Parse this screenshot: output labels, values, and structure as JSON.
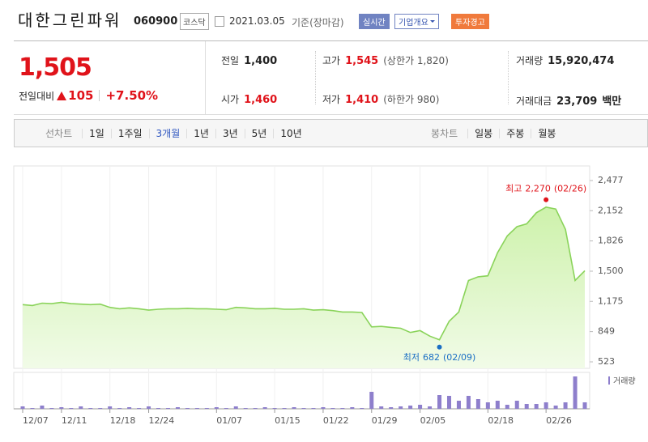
{
  "header": {
    "title": "대한그린파워",
    "code": "060900",
    "market": "코스닥",
    "date": "2021.03.05",
    "basis": "기준(장마감)",
    "buttons": [
      "실시간",
      "기업개요",
      "투자경고"
    ]
  },
  "quote": {
    "price": "1,505",
    "change_label": "전일대비",
    "change": "105",
    "change_pct": "+7.50%"
  },
  "stats": [
    {
      "label": "전일",
      "value": "1,400"
    },
    {
      "label": "고가",
      "value": "1,545",
      "note": "(상한가 1,820)"
    },
    {
      "label": "거래량",
      "value": "15,920,474"
    },
    {
      "label": "시가",
      "value": "1,460"
    },
    {
      "label": "저가",
      "value": "1,410",
      "note": "(하한가 980)"
    },
    {
      "label": "거래대금",
      "value": "23,709",
      "unit": "백만"
    }
  ],
  "tabs": {
    "line_chart": {
      "label": "선차트",
      "options": [
        "1일",
        "1주일",
        "3개월",
        "1년",
        "3년",
        "5년",
        "10년"
      ],
      "selected": 2
    },
    "candle_chart": {
      "label": "봉차트",
      "options": [
        "일봉",
        "주봉",
        "월봉"
      ]
    }
  },
  "chart_data": {
    "type": "area",
    "categories": [
      "12/07",
      null,
      null,
      null,
      "12/11",
      null,
      null,
      null,
      null,
      "12/18",
      null,
      null,
      null,
      "12/24",
      null,
      null,
      null,
      null,
      null,
      null,
      "01/07",
      null,
      null,
      null,
      null,
      null,
      "01/15",
      null,
      null,
      null,
      null,
      "01/22",
      null,
      null,
      null,
      null,
      "01/29",
      null,
      null,
      null,
      null,
      "02/05",
      null,
      null,
      null,
      null,
      null,
      null,
      "02/18",
      null,
      null,
      null,
      null,
      null,
      "02/26",
      null,
      null,
      null,
      null
    ],
    "values": [
      1140,
      1130,
      1155,
      1150,
      1165,
      1150,
      1145,
      1140,
      1145,
      1110,
      1095,
      1105,
      1095,
      1080,
      1090,
      1095,
      1095,
      1100,
      1095,
      1095,
      1090,
      1085,
      1110,
      1105,
      1095,
      1095,
      1100,
      1090,
      1090,
      1095,
      1080,
      1085,
      1075,
      1060,
      1060,
      1055,
      900,
      905,
      895,
      885,
      840,
      860,
      800,
      760,
      960,
      1060,
      1400,
      1440,
      1450,
      1700,
      1880,
      1980,
      2010,
      2130,
      2190,
      2170,
      1950,
      1400,
      1505
    ],
    "color": "#8ad35a",
    "fill": "#c8f0a2",
    "ylim": [
      523,
      2477
    ],
    "yticks": [
      {
        "value": 2477,
        "label": "2,477"
      },
      {
        "value": 2152,
        "label": "2,152"
      },
      {
        "value": 1826,
        "label": "1,826"
      },
      {
        "value": 1500,
        "label": "1,500"
      },
      {
        "value": 1175,
        "label": "1,175"
      },
      849,
      523
    ],
    "high": {
      "label": "최고",
      "value": 2270,
      "value_label": "2,270",
      "date": "(02/26)",
      "color": "#e0131a"
    },
    "low": {
      "label": "최저",
      "value": 682,
      "value_label": "682",
      "date": "(02/09)",
      "color": "#1a6ec4"
    },
    "volume": {
      "name": "거래량",
      "color": "#8e7fcc",
      "values": [
        6000000,
        2000000,
        8000000,
        2000000,
        4000000,
        2000000,
        6000000,
        2000000,
        2000000,
        6000000,
        2000000,
        4000000,
        2000000,
        6000000,
        2000000,
        2000000,
        4000000,
        2000000,
        2000000,
        2000000,
        4000000,
        2000000,
        6000000,
        2000000,
        2000000,
        4000000,
        2000000,
        2000000,
        4000000,
        2000000,
        2000000,
        4000000,
        2000000,
        2000000,
        4000000,
        2000000,
        42000000,
        6000000,
        4000000,
        6000000,
        8000000,
        10000000,
        6000000,
        34000000,
        32000000,
        20000000,
        32000000,
        24000000,
        16000000,
        20000000,
        10000000,
        20000000,
        12000000,
        12000000,
        16000000,
        8000000,
        16000000,
        80000000,
        16000000
      ]
    }
  }
}
